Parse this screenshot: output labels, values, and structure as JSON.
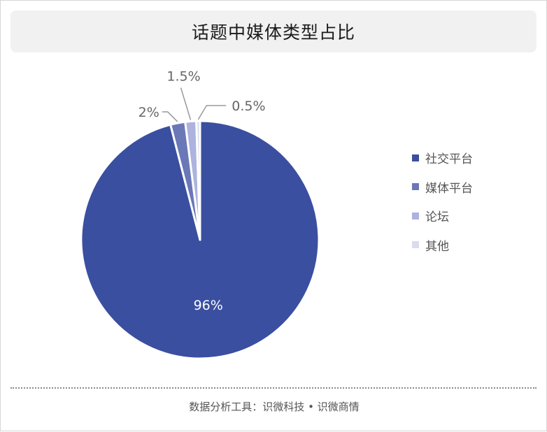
{
  "header": {
    "title": "话题中媒体类型占比"
  },
  "chart_data": {
    "type": "pie",
    "categories": [
      "社交平台",
      "媒体平台",
      "论坛",
      "其他"
    ],
    "values": [
      96,
      2,
      1.5,
      0.5
    ],
    "data_labels": [
      "96%",
      "2%",
      "1.5%",
      "0.5%"
    ],
    "colors": [
      "#3a4fa0",
      "#6b78b8",
      "#adb3de",
      "#d9dbee"
    ],
    "legend_position": "right"
  },
  "footer": {
    "credit": "数据分析工具：识微科技 • 识微商情"
  }
}
